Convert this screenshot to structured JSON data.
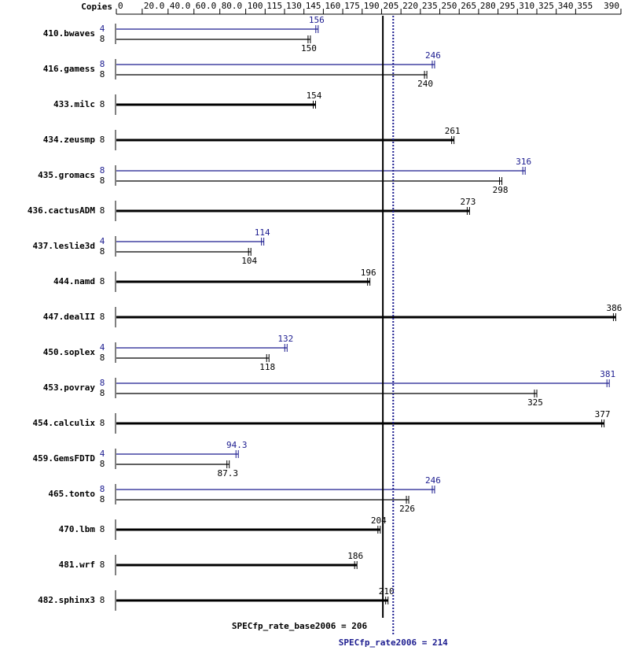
{
  "chart_data": {
    "type": "spec-rate",
    "copies_label": "Copies",
    "xlim": [
      0,
      390
    ],
    "xticks": [
      0,
      {
        "value": 20,
        "label": "20.0"
      },
      {
        "value": 40,
        "label": "40.0"
      },
      {
        "value": 60,
        "label": "60.0"
      },
      {
        "value": 80,
        "label": "80.0"
      },
      100,
      115,
      130,
      145,
      160,
      175,
      190,
      205,
      220,
      235,
      250,
      265,
      280,
      295,
      310,
      325,
      340,
      355,
      390
    ],
    "peak_color": "#1c1c8f",
    "base_color": "#000000",
    "benchmarks": [
      {
        "name": "410.bwaves",
        "peak_copies": "4",
        "peak": 156,
        "base_copies": "8",
        "base": 150
      },
      {
        "name": "416.gamess",
        "peak_copies": "8",
        "peak": 246,
        "base_copies": "8",
        "base": 240
      },
      {
        "name": "433.milc",
        "base_copies": "8",
        "base": 154
      },
      {
        "name": "434.zeusmp",
        "base_copies": "8",
        "base": 261
      },
      {
        "name": "435.gromacs",
        "peak_copies": "8",
        "peak": 316,
        "base_copies": "8",
        "base": 298
      },
      {
        "name": "436.cactusADM",
        "base_copies": "8",
        "base": 273
      },
      {
        "name": "437.leslie3d",
        "peak_copies": "4",
        "peak": 114,
        "base_copies": "8",
        "base": 104
      },
      {
        "name": "444.namd",
        "base_copies": "8",
        "base": 196
      },
      {
        "name": "447.dealII",
        "base_copies": "8",
        "base": 386
      },
      {
        "name": "450.soplex",
        "peak_copies": "4",
        "peak": 132,
        "base_copies": "8",
        "base": 118
      },
      {
        "name": "453.povray",
        "peak_copies": "8",
        "peak": 381,
        "base_copies": "8",
        "base": 325
      },
      {
        "name": "454.calculix",
        "base_copies": "8",
        "base": 377
      },
      {
        "name": "459.GemsFDTD",
        "peak_copies": "4",
        "peak": 94.3,
        "base_copies": "8",
        "base": 87.3
      },
      {
        "name": "465.tonto",
        "peak_copies": "8",
        "peak": 246,
        "base_copies": "8",
        "base": 226
      },
      {
        "name": "470.lbm",
        "base_copies": "8",
        "base": 204
      },
      {
        "name": "481.wrf",
        "base_copies": "8",
        "base": 186
      },
      {
        "name": "482.sphinx3",
        "base_copies": "8",
        "base": 210
      }
    ],
    "base_summary": {
      "label": "SPECfp_rate_base2006 = 206",
      "value": 206
    },
    "peak_summary": {
      "label": "SPECfp_rate2006 = 214",
      "value": 214
    }
  }
}
